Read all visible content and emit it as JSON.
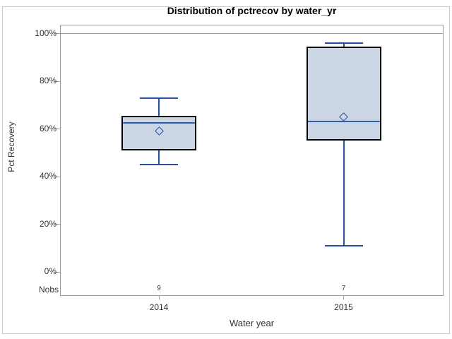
{
  "chart_data": {
    "type": "boxplot",
    "title": "Distribution of pctrecov by water_yr",
    "xlabel": "Water year",
    "ylabel": "Pct Recovery",
    "ylim": [
      0,
      100
    ],
    "yticks": [
      0,
      20,
      40,
      60,
      80,
      100
    ],
    "ytick_labels": [
      "0%",
      "20%",
      "40%",
      "60%",
      "80%",
      "100%"
    ],
    "gridlines_at": [
      100
    ],
    "legend_position": "none",
    "nobs_label": "Nobs",
    "categories": [
      "2014",
      "2015"
    ],
    "series": [
      {
        "category": "2014",
        "nobs": "9",
        "whisker_low": 45,
        "q1": 51,
        "median": 62.5,
        "q3": 65.5,
        "whisker_high": 73,
        "mean": 59
      },
      {
        "category": "2015",
        "nobs": "7",
        "whisker_low": 11,
        "q1": 55,
        "median": 63,
        "q3": 94.5,
        "whisker_high": 96,
        "mean": 65
      }
    ],
    "colors": {
      "box_fill": "#ccd5e4",
      "box_border": "#000000",
      "whisker": "#2450a4",
      "median": "#2c5fae",
      "mean_marker": "#2450a4",
      "frame": "#9b9b9b",
      "text": "#333333",
      "outer_border": "#c9c9c9"
    }
  }
}
